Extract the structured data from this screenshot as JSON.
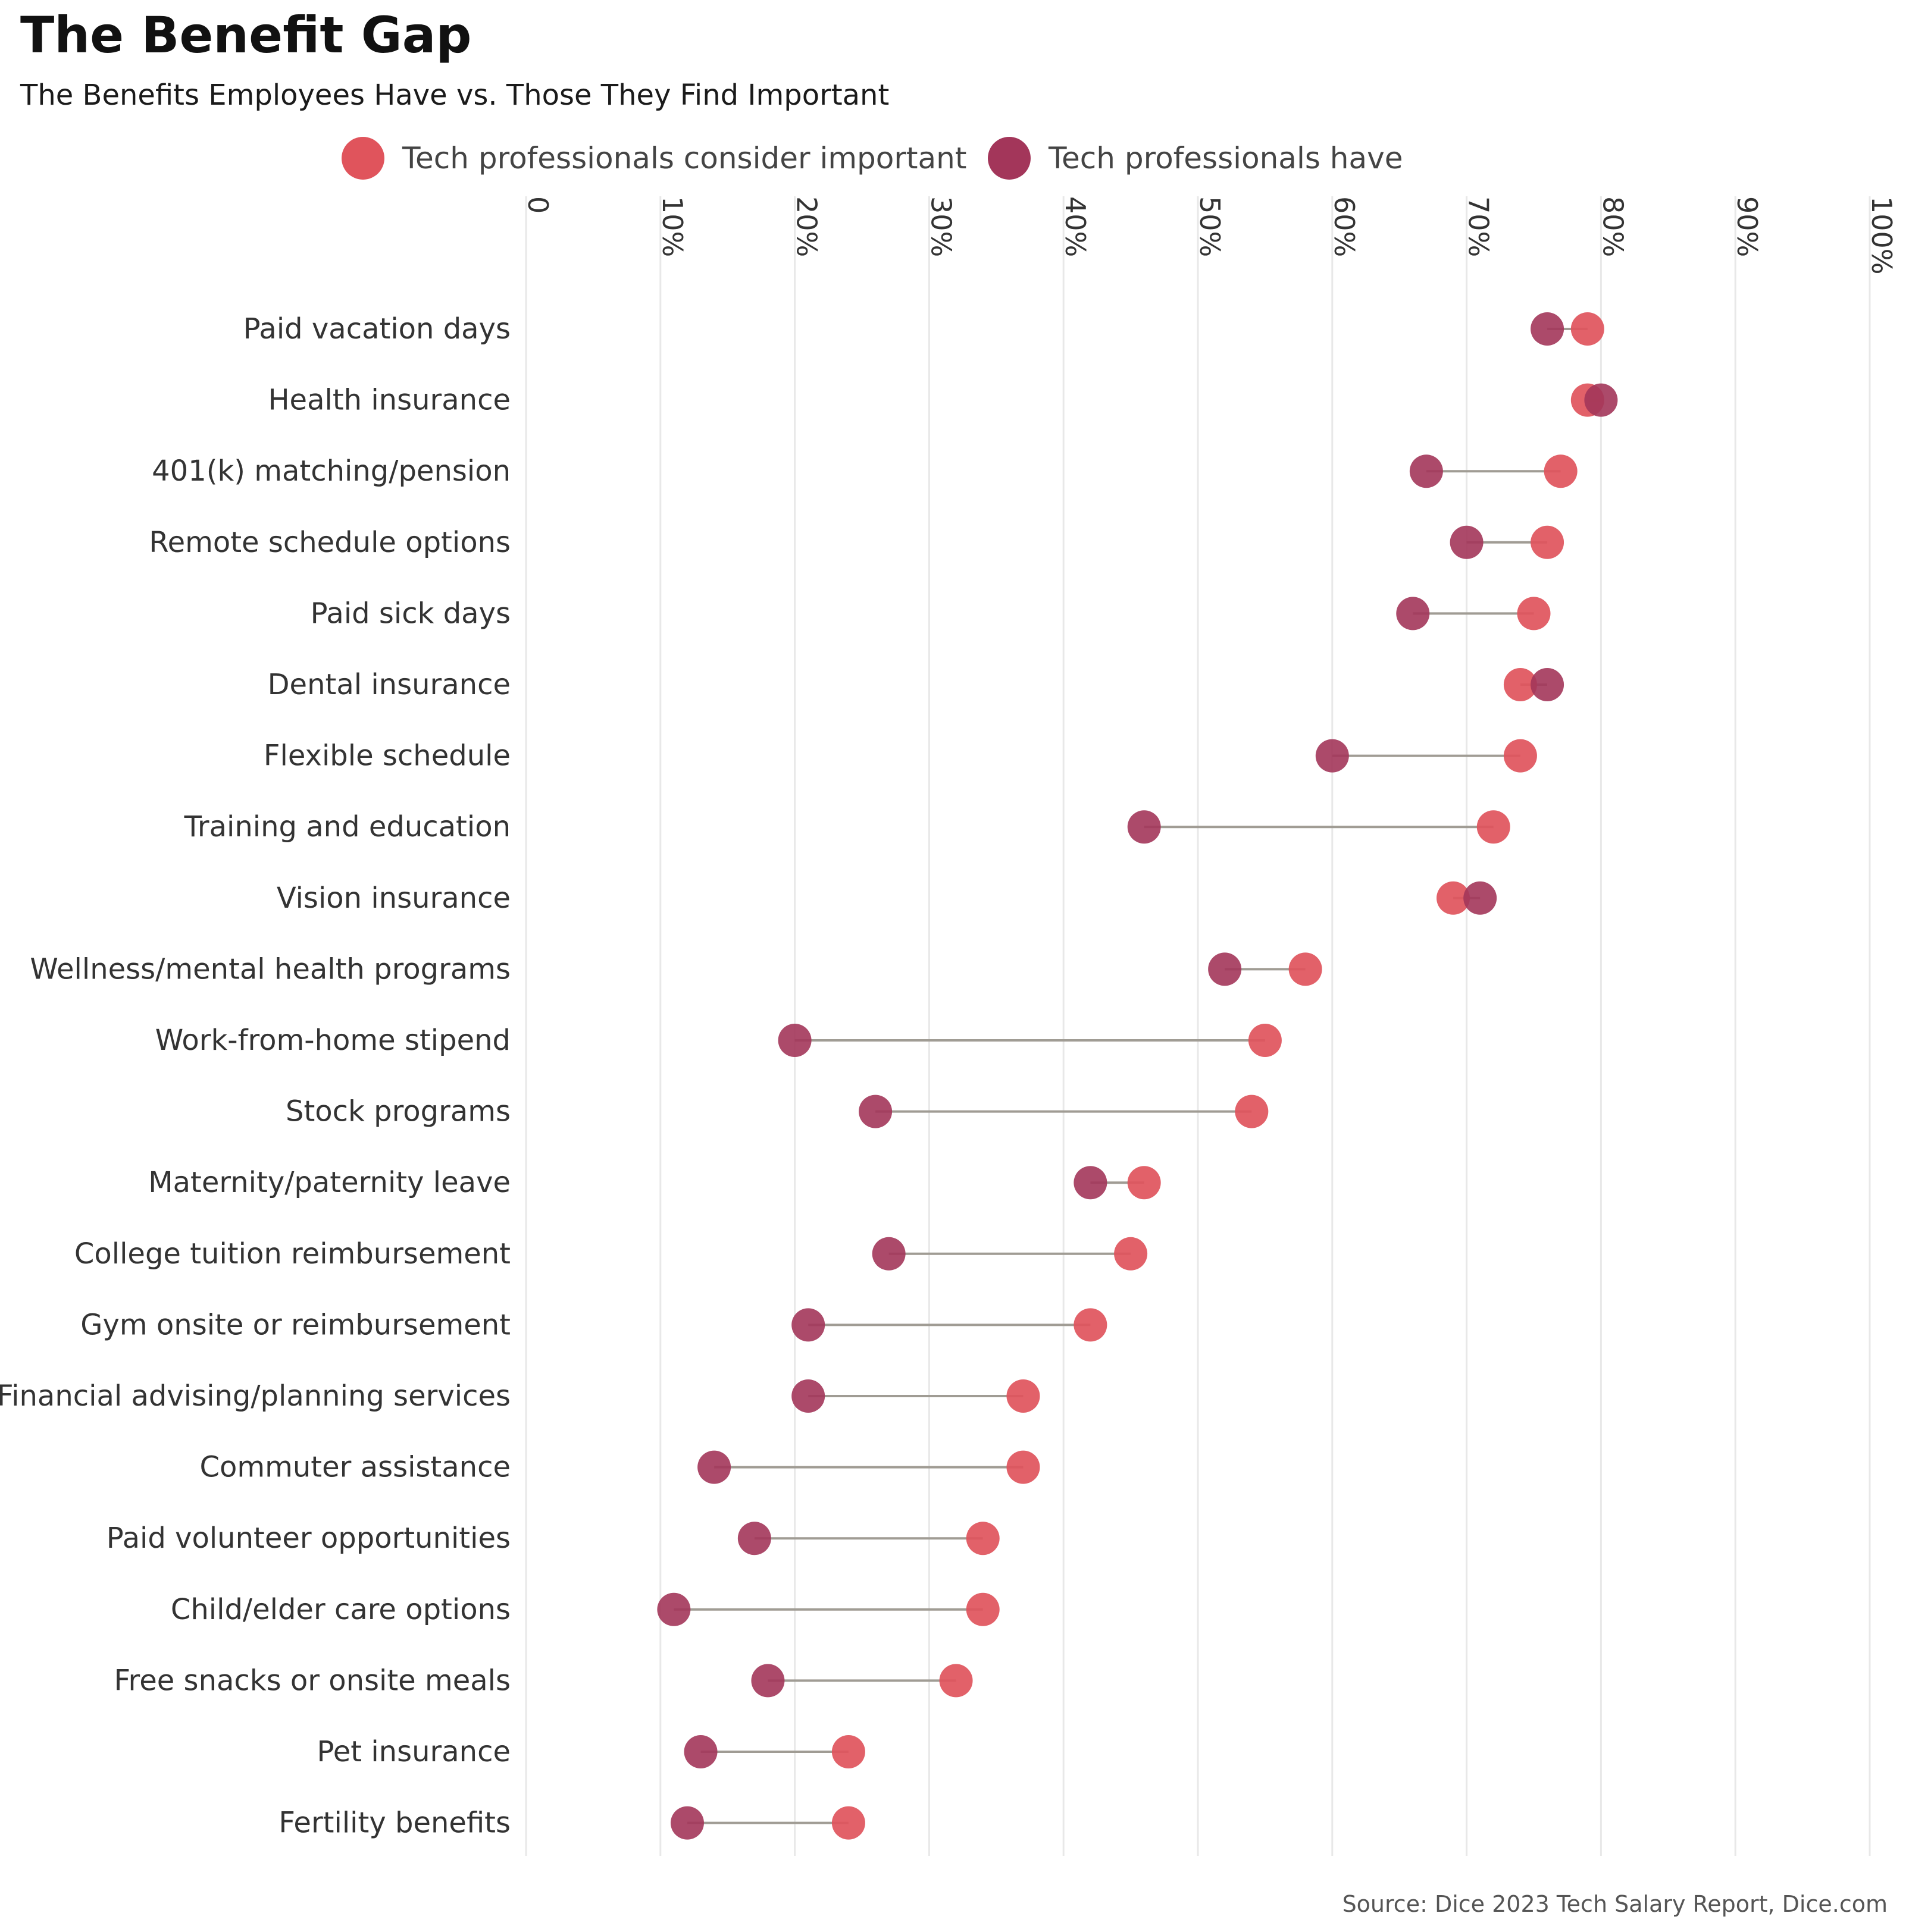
{
  "chart_data": {
    "type": "dumbbell",
    "title": "The Benefit Gap",
    "subtitle": "The Benefits Employees Have vs. Those They Find Important",
    "source": "Source: Dice 2023 Tech Salary Report, Dice.com",
    "legend_position": "top",
    "grid": true,
    "x_axis": {
      "range": [
        0,
        100
      ],
      "tick_labels": [
        "0",
        "10%",
        "20%",
        "30%",
        "40%",
        "50%",
        "60%",
        "70%",
        "80%",
        "90%",
        "100%"
      ]
    },
    "categories": [
      "Paid vacation days",
      "Health insurance",
      "401(k) matching/pension",
      "Remote schedule options",
      "Paid sick days",
      "Dental insurance",
      "Flexible schedule",
      "Training and education",
      "Vision insurance",
      "Wellness/mental health programs",
      "Work-from-home stipend",
      "Stock programs",
      "Maternity/paternity leave",
      "College tuition reimbursement",
      "Gym onsite or reimbursement",
      "Financial advising/planning services",
      "Commuter assistance",
      "Paid volunteer opportunities",
      "Child/elder care options",
      "Free snacks or onsite meals",
      "Pet insurance",
      "Fertility benefits"
    ],
    "series": [
      {
        "name": "Tech professionals consider important",
        "color": "#e0545c",
        "values": [
          79,
          79,
          77,
          76,
          75,
          74,
          74,
          72,
          69,
          58,
          55,
          54,
          46,
          45,
          42,
          37,
          37,
          34,
          34,
          32,
          24,
          24
        ]
      },
      {
        "name": "Tech professionals have",
        "color": "#a3365a",
        "values": [
          76,
          80,
          67,
          70,
          66,
          76,
          60,
          46,
          71,
          52,
          20,
          26,
          42,
          27,
          21,
          21,
          14,
          17,
          11,
          18,
          13,
          12
        ]
      }
    ],
    "connector_color": "#a09c94",
    "grid_color": "#e8e8e8"
  }
}
